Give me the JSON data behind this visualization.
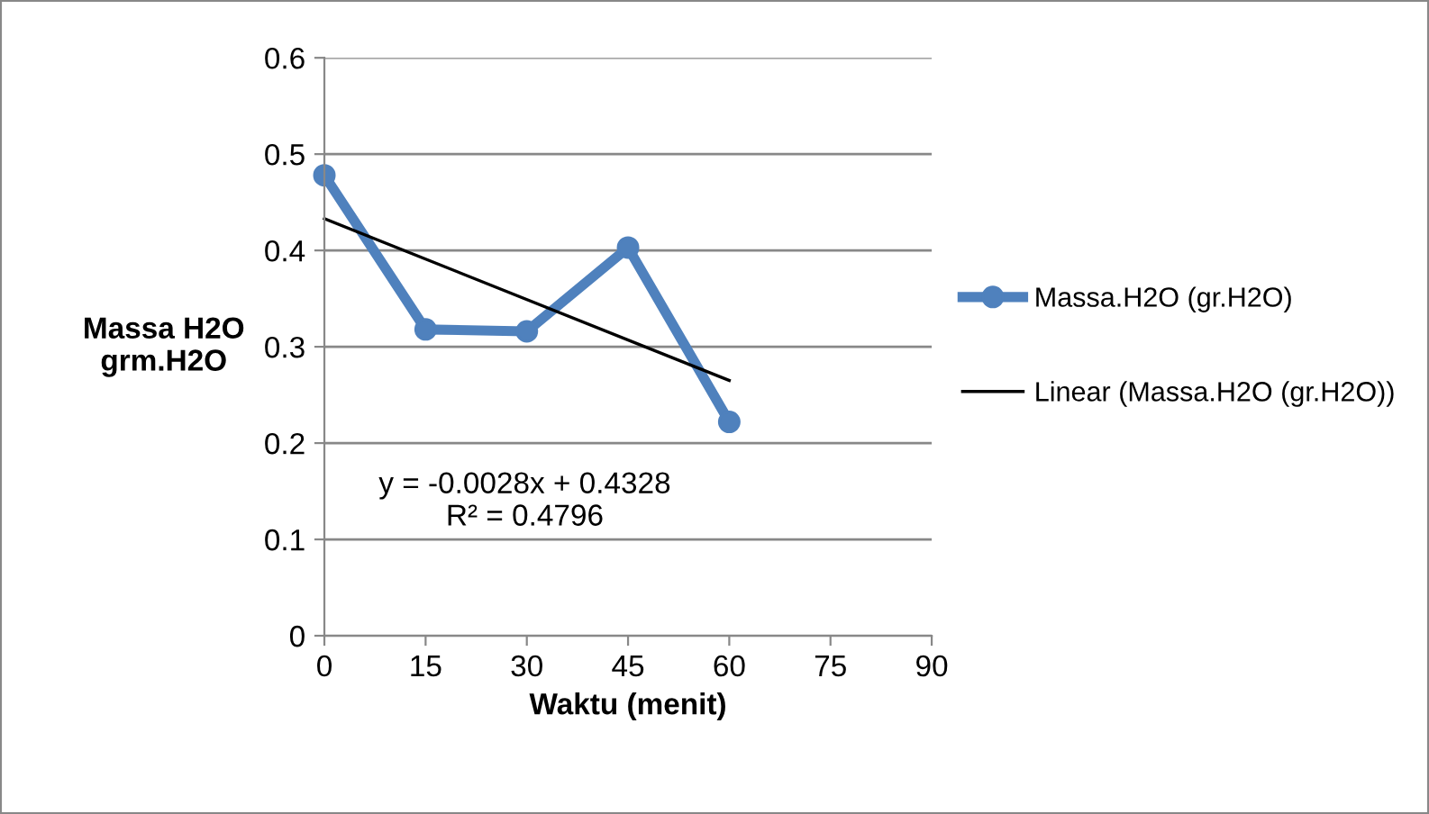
{
  "chart_data": {
    "type": "line",
    "xlabel": "Waktu (menit)",
    "ylabel": "Massa H2O\ngrm.H2O",
    "x": [
      0,
      15,
      30,
      45,
      60
    ],
    "series": [
      {
        "name": "Massa.H2O (gr.H2O)",
        "color": "#4f81bd",
        "values": [
          0.478,
          0.318,
          0.316,
          0.403,
          0.222
        ],
        "marker": "circle"
      },
      {
        "name": "Linear (Massa.H2O (gr.H2O))",
        "type": "line",
        "color": "#000000",
        "x": [
          0,
          60
        ],
        "values": [
          0.433,
          0.265
        ],
        "marker": "none"
      }
    ],
    "annotations": [
      "y = -0.0028x + 0.4328\nR² = 0.4796"
    ],
    "xlim": [
      0,
      90
    ],
    "xticks": [
      0,
      15,
      30,
      45,
      60,
      75,
      90
    ],
    "ylim": [
      0,
      0.6
    ],
    "yticks": [
      0,
      0.1,
      0.2,
      0.3,
      0.4,
      0.5,
      0.6
    ],
    "grid": "y",
    "legend": "right",
    "line_style": "solid"
  }
}
